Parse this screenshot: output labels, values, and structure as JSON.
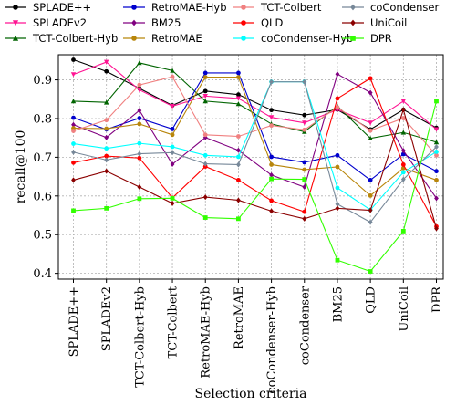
{
  "chart_data": {
    "type": "line",
    "xlabel": "Selection criteria",
    "ylabel": "recall@100",
    "ylim": [
      0.385,
      0.965
    ],
    "yticks": [
      0.4,
      0.5,
      0.6,
      0.7,
      0.8,
      0.9
    ],
    "ytick_labels": [
      "0.4",
      "0.5",
      "0.6",
      "0.7",
      "0.8",
      "0.9"
    ],
    "grid": true,
    "legend_placement": "top",
    "categories": [
      "SPLADE++",
      "SPLADEv2",
      "TCT-Colbert-Hyb",
      "TCT-Colbert",
      "RetroMAE-Hyb",
      "RetroMAE",
      "coCondenser-Hyb",
      "coCondenser",
      "BM25",
      "QLD",
      "UniCoil",
      "DPR"
    ],
    "series": [
      {
        "name": "SPLADE++",
        "color": "#000000",
        "marker": "circle",
        "values": [
          0.952,
          0.922,
          0.878,
          0.834,
          0.871,
          0.862,
          0.822,
          0.809,
          0.823,
          0.772,
          0.823,
          0.776
        ]
      },
      {
        "name": "SPLADEv2",
        "color": "#ff1493",
        "marker": "triangle-down",
        "values": [
          0.914,
          0.946,
          0.874,
          0.832,
          0.858,
          0.852,
          0.803,
          0.789,
          0.823,
          0.789,
          0.845,
          0.772
        ]
      },
      {
        "name": "TCT-Colbert-Hyb",
        "color": "#006400",
        "marker": "triangle-up",
        "values": [
          0.845,
          0.842,
          0.944,
          0.924,
          0.845,
          0.838,
          0.786,
          0.766,
          0.832,
          0.749,
          0.764,
          0.739
        ]
      },
      {
        "name": "RetroMAE-Hyb",
        "color": "#0000cd",
        "marker": "circle",
        "values": [
          0.802,
          0.772,
          0.801,
          0.773,
          0.918,
          0.918,
          0.701,
          0.687,
          0.705,
          0.641,
          0.708,
          0.664
        ]
      },
      {
        "name": "BM25",
        "color": "#800080",
        "marker": "diamond",
        "values": [
          0.784,
          0.751,
          0.821,
          0.682,
          0.751,
          0.718,
          0.654,
          0.623,
          0.915,
          0.867,
          0.717,
          0.594
        ]
      },
      {
        "name": "RetroMAE",
        "color": "#b8860b",
        "marker": "circle",
        "values": [
          0.775,
          0.774,
          0.786,
          0.758,
          0.907,
          0.907,
          0.681,
          0.668,
          0.675,
          0.601,
          0.672,
          0.641
        ]
      },
      {
        "name": "TCT-Colbert",
        "color": "#f08080",
        "marker": "circle",
        "values": [
          0.768,
          0.796,
          0.887,
          0.908,
          0.758,
          0.754,
          0.782,
          0.771,
          0.829,
          0.769,
          0.801,
          0.705
        ]
      },
      {
        "name": "QLD",
        "color": "#ff0000",
        "marker": "circle",
        "values": [
          0.686,
          0.703,
          0.698,
          0.595,
          0.676,
          0.641,
          0.588,
          0.559,
          0.852,
          0.904,
          0.681,
          0.521
        ]
      },
      {
        "name": "coCondenser-Hyb",
        "color": "#00ffff",
        "marker": "circle",
        "values": [
          0.735,
          0.723,
          0.736,
          0.727,
          0.705,
          0.701,
          0.895,
          0.895,
          0.621,
          0.564,
          0.661,
          0.714
        ]
      },
      {
        "name": "coCondenser",
        "color": "#778899",
        "marker": "diamond",
        "values": [
          0.713,
          0.693,
          0.709,
          0.712,
          0.683,
          0.681,
          0.895,
          0.895,
          0.579,
          0.532,
          0.643,
          0.727
        ]
      },
      {
        "name": "UniCoil",
        "color": "#8b0000",
        "marker": "diamond",
        "values": [
          0.641,
          0.664,
          0.623,
          0.581,
          0.597,
          0.589,
          0.561,
          0.541,
          0.568,
          0.563,
          0.823,
          0.516
        ]
      },
      {
        "name": "DPR",
        "color": "#32ff00",
        "marker": "square",
        "values": [
          0.562,
          0.568,
          0.593,
          0.594,
          0.544,
          0.541,
          0.644,
          0.643,
          0.434,
          0.405,
          0.509,
          0.845
        ]
      }
    ],
    "legend_rows": [
      [
        "SPLADE++",
        "RetroMAE-Hyb",
        "TCT-Colbert",
        "coCondenser"
      ],
      [
        "SPLADEv2",
        "BM25",
        "QLD",
        "UniCoil"
      ],
      [
        "TCT-Colbert-Hyb",
        "RetroMAE",
        "coCondenser-Hyb",
        "DPR"
      ]
    ]
  }
}
